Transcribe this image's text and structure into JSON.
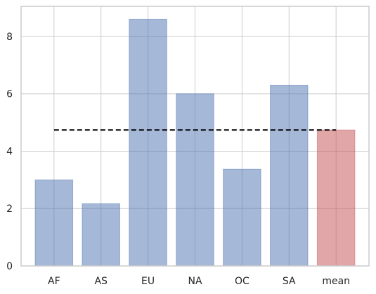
{
  "chart_data": {
    "type": "bar",
    "title": "",
    "xlabel": "",
    "ylabel": "",
    "categories": [
      "AF",
      "AS",
      "EU",
      "NA",
      "OC",
      "SA",
      "mean"
    ],
    "values": [
      3.0,
      2.17,
      8.6,
      6.0,
      3.37,
      6.3,
      4.74
    ],
    "ylim": [
      0,
      9.05
    ],
    "yticks": [
      "0",
      "2",
      "4",
      "6",
      "8"
    ],
    "reference_line": {
      "value": 4.74,
      "style": "dashed",
      "color": "#000000"
    },
    "grid": true,
    "colors": {
      "bar": "#4c72b0",
      "mean_bar": "#c44e52",
      "grid": "#cccccc",
      "spine": "#cccccc"
    },
    "bar_alpha": 0.5
  }
}
